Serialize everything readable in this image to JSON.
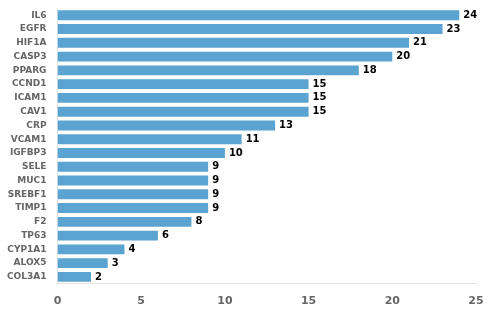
{
  "chart_data": {
    "type": "bar",
    "orientation": "horizontal",
    "categories": [
      "IL6",
      "EGFR",
      "HIF1A",
      "CASP3",
      "PPARG",
      "CCND1",
      "ICAM1",
      "CAV1",
      "CRP",
      "VCAM1",
      "IGFBP3",
      "SELE",
      "MUC1",
      "SREBF1",
      "TIMP1",
      "F2",
      "TP63",
      "CYP1A1",
      "ALOX5",
      "COL3A1"
    ],
    "values": [
      24,
      23,
      21,
      20,
      18,
      15,
      15,
      15,
      13,
      11,
      10,
      9,
      9,
      9,
      9,
      8,
      6,
      4,
      3,
      2
    ],
    "color": "#5ba3d0",
    "xlim": [
      0,
      25
    ],
    "xticks": [
      0,
      5,
      10,
      15,
      20,
      25
    ],
    "grid": false,
    "data_labels": true
  }
}
